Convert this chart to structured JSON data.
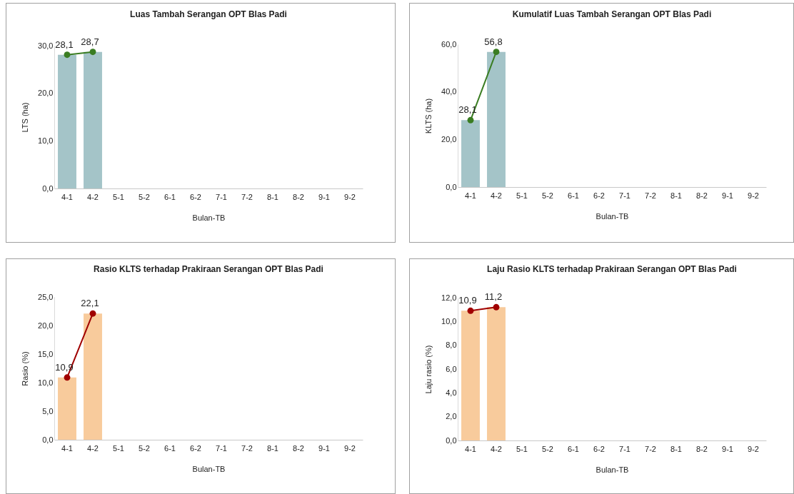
{
  "chart_data": [
    {
      "type": "bar",
      "title": "Luas Tambah Serangan OPT Blas Padi",
      "xlabel": "Bulan-TB",
      "ylabel": "LTS (ha)",
      "categories": [
        "4-1",
        "4-2",
        "5-1",
        "5-2",
        "6-1",
        "6-2",
        "7-1",
        "7-2",
        "8-1",
        "8-2",
        "9-1",
        "9-2"
      ],
      "ylim": [
        0,
        30
      ],
      "yticks": [
        {
          "value": 0,
          "label": "0,0"
        },
        {
          "value": 10,
          "label": "10,0"
        },
        {
          "value": 20,
          "label": "20,0"
        },
        {
          "value": 30,
          "label": "30,0"
        }
      ],
      "grid": false,
      "marker": "circle",
      "series": [
        {
          "color": "#a4c4c8",
          "values": [
            28.1,
            28.7,
            null,
            null,
            null,
            null,
            null,
            null,
            null,
            null,
            null,
            null
          ]
        },
        {
          "type": "line",
          "color": "#3a7d22",
          "values": [
            28.1,
            28.7,
            null,
            null,
            null,
            null,
            null,
            null,
            null,
            null,
            null,
            null
          ],
          "value_labels": [
            "28,1",
            "28,7",
            null,
            null,
            null,
            null,
            null,
            null,
            null,
            null,
            null,
            null
          ]
        }
      ]
    },
    {
      "type": "bar",
      "title": "Kumulatif Luas Tambah Serangan OPT Blas Padi",
      "xlabel": "Bulan-TB",
      "ylabel": "KLTS (ha)",
      "categories": [
        "4-1",
        "4-2",
        "5-1",
        "5-2",
        "6-1",
        "6-2",
        "7-1",
        "7-2",
        "8-1",
        "8-2",
        "9-1",
        "9-2"
      ],
      "ylim": [
        0,
        60
      ],
      "yticks": [
        {
          "value": 0,
          "label": "0,0"
        },
        {
          "value": 20,
          "label": "20,0"
        },
        {
          "value": 40,
          "label": "40,0"
        },
        {
          "value": 60,
          "label": "60,0"
        }
      ],
      "grid": false,
      "marker": "circle",
      "series": [
        {
          "color": "#a4c4c8",
          "values": [
            28.1,
            56.8,
            null,
            null,
            null,
            null,
            null,
            null,
            null,
            null,
            null,
            null
          ]
        },
        {
          "type": "line",
          "color": "#3a7d22",
          "values": [
            28.1,
            56.8,
            null,
            null,
            null,
            null,
            null,
            null,
            null,
            null,
            null,
            null
          ],
          "value_labels": [
            "28,1",
            "56,8",
            null,
            null,
            null,
            null,
            null,
            null,
            null,
            null,
            null,
            null
          ]
        }
      ]
    },
    {
      "type": "bar",
      "title": "Rasio KLTS terhadap Prakiraan Serangan OPT Blas Padi",
      "xlabel": "Bulan-TB",
      "ylabel": "Rasio (%)",
      "categories": [
        "4-1",
        "4-2",
        "5-1",
        "5-2",
        "6-1",
        "6-2",
        "7-1",
        "7-2",
        "8-1",
        "8-2",
        "9-1",
        "9-2"
      ],
      "ylim": [
        0,
        25
      ],
      "yticks": [
        {
          "value": 0,
          "label": "0,0"
        },
        {
          "value": 5,
          "label": "5,0"
        },
        {
          "value": 10,
          "label": "10,0"
        },
        {
          "value": 15,
          "label": "15,0"
        },
        {
          "value": 20,
          "label": "20,0"
        },
        {
          "value": 25,
          "label": "25,0"
        }
      ],
      "grid": false,
      "marker": "circle",
      "series": [
        {
          "color": "#f8cb9c",
          "values": [
            10.9,
            22.1,
            null,
            null,
            null,
            null,
            null,
            null,
            null,
            null,
            null,
            null
          ]
        },
        {
          "type": "line",
          "color": "#a00000",
          "values": [
            10.9,
            22.1,
            null,
            null,
            null,
            null,
            null,
            null,
            null,
            null,
            null,
            null
          ],
          "value_labels": [
            "10,9",
            "22,1",
            null,
            null,
            null,
            null,
            null,
            null,
            null,
            null,
            null,
            null
          ]
        }
      ]
    },
    {
      "type": "bar",
      "title": "Laju Rasio KLTS terhadap Prakiraan Serangan OPT Blas Padi",
      "xlabel": "Bulan-TB",
      "ylabel": "Laju rasio (%)",
      "categories": [
        "4-1",
        "4-2",
        "5-1",
        "5-2",
        "6-1",
        "6-2",
        "7-1",
        "7-2",
        "8-1",
        "8-2",
        "9-1",
        "9-2"
      ],
      "ylim": [
        0,
        12
      ],
      "yticks": [
        {
          "value": 0,
          "label": "0,0"
        },
        {
          "value": 2,
          "label": "2,0"
        },
        {
          "value": 4,
          "label": "4,0"
        },
        {
          "value": 6,
          "label": "6,0"
        },
        {
          "value": 8,
          "label": "8,0"
        },
        {
          "value": 10,
          "label": "10,0"
        },
        {
          "value": 12,
          "label": "12,0"
        }
      ],
      "grid": false,
      "marker": "circle",
      "series": [
        {
          "color": "#f8cb9c",
          "values": [
            10.9,
            11.2,
            null,
            null,
            null,
            null,
            null,
            null,
            null,
            null,
            null,
            null
          ]
        },
        {
          "type": "line",
          "color": "#a00000",
          "values": [
            10.9,
            11.2,
            null,
            null,
            null,
            null,
            null,
            null,
            null,
            null,
            null,
            null
          ],
          "value_labels": [
            "10,9",
            "11,2",
            null,
            null,
            null,
            null,
            null,
            null,
            null,
            null,
            null,
            null
          ]
        }
      ]
    }
  ]
}
